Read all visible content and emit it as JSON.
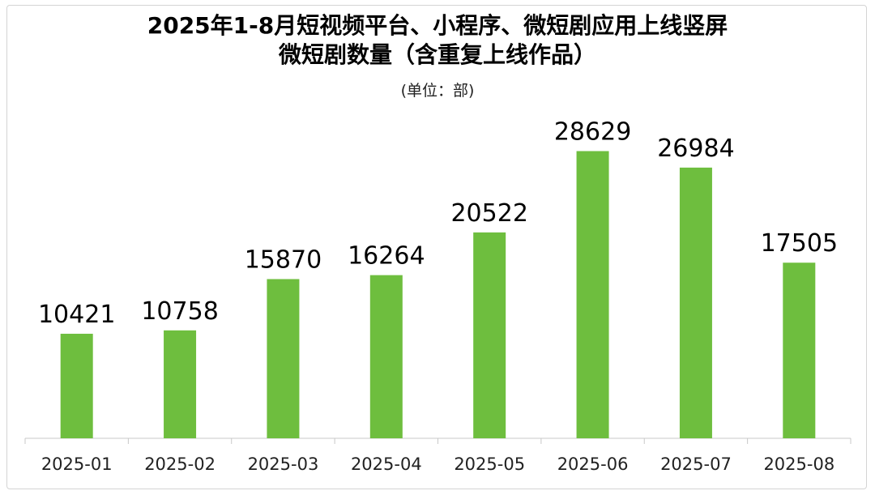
{
  "chart_data": {
    "type": "bar",
    "title_lines": [
      "2025年1-8月短视频平台、小程序、微短剧应用上线竖屏",
      "微短剧数量（含重复上线作品）"
    ],
    "subtitle": "(单位：部)",
    "xlabel": "",
    "ylabel": "",
    "categories": [
      "2025-01",
      "2025-02",
      "2025-03",
      "2025-04",
      "2025-05",
      "2025-06",
      "2025-07",
      "2025-08"
    ],
    "values": [
      10421,
      10758,
      15870,
      16264,
      20522,
      28629,
      26984,
      17505
    ],
    "ylim": [
      0,
      34000
    ],
    "grid": false,
    "legend": "none",
    "data_labels": true,
    "bar_color": "#6ebe3e",
    "axis_color": "#c8c8c8"
  }
}
